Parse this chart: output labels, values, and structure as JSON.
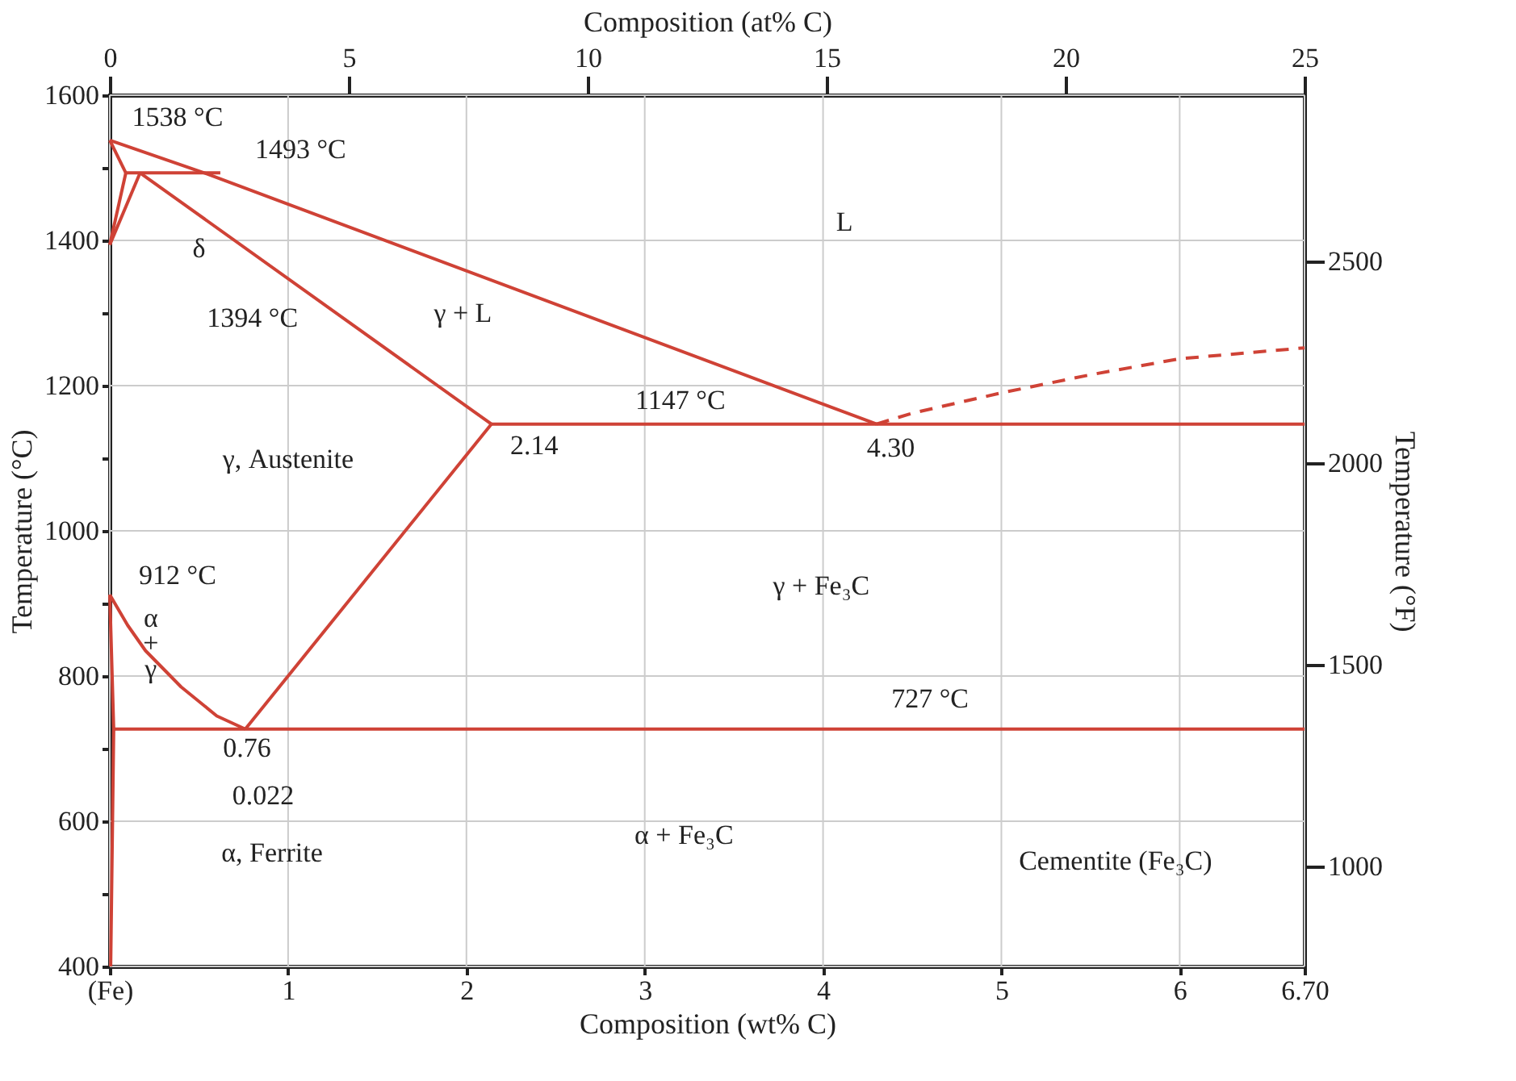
{
  "chart_data": {
    "type": "line",
    "xlabel": "Composition (wt% C)",
    "ylabel": "Temperature (°C)",
    "y2label": "Temperature (°F)",
    "x2label": "Composition (at% C)",
    "xlim": [
      0,
      6.7
    ],
    "ylim": [
      400,
      1600
    ],
    "x2lim": [
      0,
      25
    ],
    "y2lim": [
      752,
      2912
    ],
    "xticks": [
      {
        "value": 0,
        "label": "(Fe)"
      },
      1,
      2,
      3,
      4,
      5,
      6,
      {
        "value": 6.7,
        "label": "6.70"
      }
    ],
    "yticks": [
      400,
      {
        "value": 500,
        "label": null
      },
      600,
      {
        "value": 700,
        "label": null
      },
      800,
      {
        "value": 900,
        "label": null
      },
      1000,
      {
        "value": 1100,
        "label": null
      },
      1200,
      {
        "value": 1300,
        "label": null
      },
      1400,
      {
        "value": 1500,
        "label": null
      },
      1600
    ],
    "x2ticks": [
      0,
      5,
      10,
      15,
      20,
      25
    ],
    "y2ticks": [
      1000,
      1500,
      2000,
      2500
    ],
    "grid": true,
    "line_style": "solid",
    "marker": "none",
    "series": [
      {
        "color": "#cf4236",
        "x": [
          0,
          0.53,
          4.3
        ],
        "values": [
          1538,
          1493,
          1147
        ]
      },
      {
        "color": "#cf4236",
        "x": [
          4.3,
          4.5,
          5,
          5.5,
          6,
          6.7
        ],
        "values": [
          1147,
          1162,
          1190,
          1215,
          1237,
          1252
        ],
        "line_style": "dashed"
      },
      {
        "color": "#cf4236",
        "x": [
          0,
          0.09
        ],
        "values": [
          1538,
          1493
        ]
      },
      {
        "color": "#cf4236",
        "x": [
          0,
          0.09
        ],
        "values": [
          1394,
          1493
        ]
      },
      {
        "color": "#cf4236",
        "x": [
          0,
          0.17
        ],
        "values": [
          1394,
          1493
        ]
      },
      {
        "color": "#cf4236",
        "x": [
          0.09,
          0.62
        ],
        "values": [
          1493,
          1493
        ]
      },
      {
        "color": "#cf4236",
        "x": [
          0.17,
          2.14
        ],
        "values": [
          1493,
          1147
        ]
      },
      {
        "color": "#cf4236",
        "x": [
          2.14,
          6.7
        ],
        "values": [
          1147,
          1147
        ]
      },
      {
        "color": "#cf4236",
        "x": [
          2.14,
          0.76
        ],
        "values": [
          1147,
          727
        ]
      },
      {
        "color": "#cf4236",
        "x": [
          0,
          0.1,
          0.2,
          0.4,
          0.6,
          0.76
        ],
        "values": [
          912,
          870,
          835,
          785,
          745,
          727
        ]
      },
      {
        "color": "#cf4236",
        "x": [
          0.022,
          6.7
        ],
        "values": [
          727,
          727
        ]
      },
      {
        "color": "#cf4236",
        "x": [
          0,
          0.022,
          0.005
        ],
        "values": [
          912,
          727,
          400
        ]
      }
    ],
    "annotations": [
      "1538 °C",
      "1493 °C",
      "δ",
      "1394 °C",
      "L",
      "γ + L",
      "1147 °C",
      "2.14",
      "4.30",
      "γ, Austenite",
      "912 °C",
      "γ + Fe₃C",
      "α",
      "+",
      "γ",
      "727 °C",
      "0.76",
      "0.022",
      "α, Ferrite",
      "α + Fe₃C",
      "Cementite (Fe₃C)"
    ]
  }
}
